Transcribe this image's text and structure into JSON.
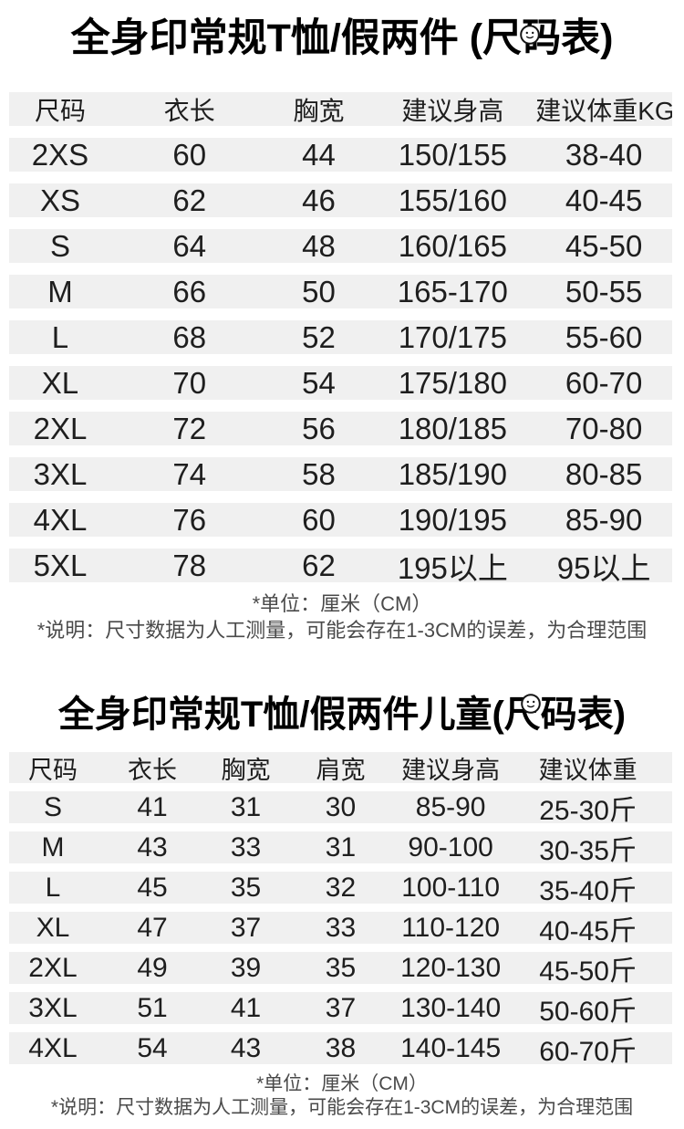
{
  "page": {
    "background_color": "#ffffff",
    "row_band_color": "#f0f0f0",
    "text_color": "#1e1e1e",
    "note_color": "#4a4a4a",
    "title_color": "#000000"
  },
  "stamp": {
    "icon": "circular-stamp-icon"
  },
  "adult": {
    "title": "全身印常规T恤/假两件 (尺码表)",
    "headers": [
      "尺码",
      "衣长",
      "胸宽",
      "建议身高",
      "建议体重KG"
    ],
    "rows": [
      [
        "2XS",
        "60",
        "44",
        "150/155",
        "38-40"
      ],
      [
        "XS",
        "62",
        "46",
        "155/160",
        "40-45"
      ],
      [
        "S",
        "64",
        "48",
        "160/165",
        "45-50"
      ],
      [
        "M",
        "66",
        "50",
        "165-170",
        "50-55"
      ],
      [
        "L",
        "68",
        "52",
        "170/175",
        "55-60"
      ],
      [
        "XL",
        "70",
        "54",
        "175/180",
        "60-70"
      ],
      [
        "2XL",
        "72",
        "56",
        "180/185",
        "70-80"
      ],
      [
        "3XL",
        "74",
        "58",
        "185/190",
        "80-85"
      ],
      [
        "4XL",
        "76",
        "60",
        "190/195",
        "85-90"
      ],
      [
        "5XL",
        "78",
        "62",
        "195以上",
        "95以上"
      ]
    ],
    "notes": {
      "unit": "*单位：厘米（CM）",
      "desc": "*说明：尺寸数据为人工测量，可能会存在1-3CM的误差，为合理范围"
    }
  },
  "children": {
    "title": "全身印常规T恤/假两件儿童(尺码表)",
    "headers": [
      "尺码",
      "衣长",
      "胸宽",
      "肩宽",
      "建议身高",
      "建议体重"
    ],
    "rows": [
      [
        "S",
        "41",
        "31",
        "30",
        "85-90",
        "25-30斤"
      ],
      [
        "M",
        "43",
        "33",
        "31",
        "90-100",
        "30-35斤"
      ],
      [
        "L",
        "45",
        "35",
        "32",
        "100-110",
        "35-40斤"
      ],
      [
        "XL",
        "47",
        "37",
        "33",
        "110-120",
        "40-45斤"
      ],
      [
        "2XL",
        "49",
        "39",
        "35",
        "120-130",
        "45-50斤"
      ],
      [
        "3XL",
        "51",
        "41",
        "37",
        "130-140",
        "50-60斤"
      ],
      [
        "4XL",
        "54",
        "43",
        "38",
        "140-145",
        "60-70斤"
      ]
    ],
    "notes": {
      "unit": "*单位：厘米（CM）",
      "desc": "*说明：尺寸数据为人工测量，可能会存在1-3CM的误差，为合理范围"
    }
  }
}
